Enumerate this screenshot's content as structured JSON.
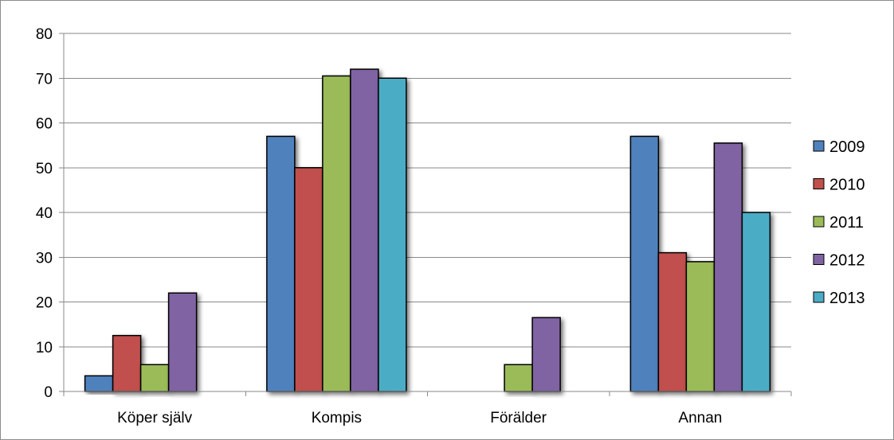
{
  "chart_data": {
    "type": "bar",
    "title": "",
    "xlabel": "",
    "ylabel": "",
    "ylim": [
      0,
      80
    ],
    "yticks": [
      0,
      10,
      20,
      30,
      40,
      50,
      60,
      70,
      80
    ],
    "grid": true,
    "legend_position": "right",
    "categories": [
      "Köper själv",
      "Kompis",
      "Förälder",
      "Annan"
    ],
    "series": [
      {
        "name": "2009",
        "color": "#4f81bd",
        "values": [
          3.5,
          57,
          null,
          57
        ]
      },
      {
        "name": "2010",
        "color": "#c0504d",
        "values": [
          12.5,
          50,
          null,
          31
        ]
      },
      {
        "name": "2011",
        "color": "#9bbb59",
        "values": [
          6,
          70.5,
          6,
          29
        ]
      },
      {
        "name": "2012",
        "color": "#8064a2",
        "values": [
          22,
          72,
          16.5,
          55.5
        ]
      },
      {
        "name": "2013",
        "color": "#4bacc6",
        "values": [
          null,
          70,
          null,
          40
        ]
      }
    ]
  }
}
